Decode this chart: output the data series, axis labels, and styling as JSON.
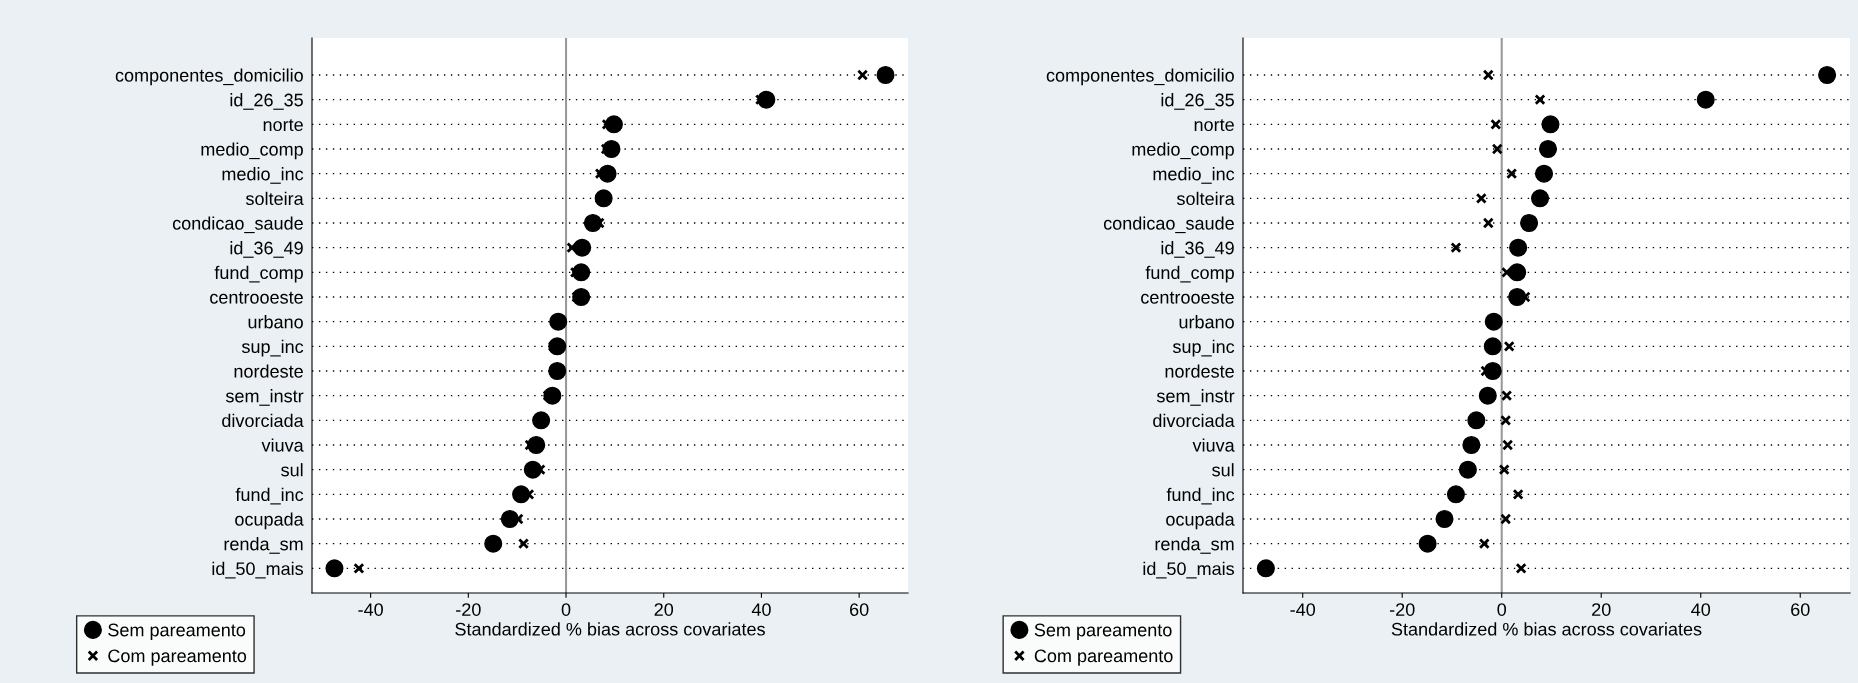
{
  "chart_data": [
    {
      "type": "scatter",
      "orientation": "horizontal",
      "xlabel": "Standardized % bias across covariates",
      "categories": [
        "componentes_domicilio",
        "id_26_35",
        "norte",
        "medio_comp",
        "medio_inc",
        "solteira",
        "condicao_saude",
        "id_36_49",
        "fund_comp",
        "centrooeste",
        "urbano",
        "sup_inc",
        "nordeste",
        "sem_instr",
        "divorciada",
        "viuva",
        "sul",
        "fund_inc",
        "ocupada",
        "renda_sm",
        "id_50_mais"
      ],
      "series": [
        {
          "name": "Sem pareamento",
          "color": "#000000",
          "marker": "circle",
          "values": [
            65.4,
            41.0,
            9.8,
            9.3,
            8.5,
            7.7,
            5.5,
            3.3,
            3.1,
            3.1,
            -1.6,
            -1.8,
            -1.8,
            -2.8,
            -5.1,
            -6.1,
            -6.8,
            -9.2,
            -11.5,
            -14.9,
            -47.4
          ]
        },
        {
          "name": "Com pareamento",
          "color": "#000000",
          "marker": "cross",
          "values": [
            60.7,
            39.8,
            8.4,
            8.2,
            7.0,
            7.0,
            6.8,
            1.2,
            1.9,
            2.2,
            null,
            -2.6,
            null,
            -3.7,
            null,
            -7.4,
            -5.3,
            -7.6,
            -9.8,
            -8.7,
            -42.4
          ]
        }
      ],
      "xlim": [
        -52,
        70
      ],
      "xticks": [
        -40,
        -20,
        0,
        20,
        40,
        60
      ],
      "ref_lines": [
        {
          "axis": "x",
          "value": 0,
          "color": "#999999"
        }
      ],
      "grid": "y",
      "legend": "bottom left"
    },
    {
      "type": "scatter",
      "orientation": "horizontal",
      "xlabel": "Standardized % bias across covariates",
      "categories": [
        "componentes_domicilio",
        "id_26_35",
        "norte",
        "medio_comp",
        "medio_inc",
        "solteira",
        "condicao_saude",
        "id_36_49",
        "fund_comp",
        "centrooeste",
        "urbano",
        "sup_inc",
        "nordeste",
        "sem_instr",
        "divorciada",
        "viuva",
        "sul",
        "fund_inc",
        "ocupada",
        "renda_sm",
        "id_50_mais"
      ],
      "series": [
        {
          "name": "Sem pareamento",
          "color": "#000000",
          "marker": "circle",
          "values": [
            65.4,
            41.0,
            9.8,
            9.3,
            8.5,
            7.7,
            5.5,
            3.3,
            3.1,
            3.1,
            -1.6,
            -1.8,
            -1.8,
            -2.8,
            -5.1,
            -6.1,
            -6.8,
            -9.2,
            -11.5,
            -14.9,
            -47.4
          ]
        },
        {
          "name": "Com pareamento",
          "color": "#000000",
          "marker": "cross",
          "values": [
            -2.7,
            7.7,
            -1.2,
            -0.9,
            2.0,
            -4.1,
            -2.7,
            -9.2,
            1.0,
            4.7,
            null,
            1.5,
            -3.2,
            1.0,
            0.8,
            1.2,
            0.5,
            3.3,
            0.8,
            -3.5,
            3.9
          ]
        }
      ],
      "xlim": [
        -52,
        70
      ],
      "xticks": [
        -40,
        -20,
        0,
        20,
        40,
        60
      ],
      "ref_lines": [
        {
          "axis": "x",
          "value": 0,
          "color": "#999999"
        }
      ],
      "grid": "y",
      "legend": "bottom left"
    }
  ]
}
